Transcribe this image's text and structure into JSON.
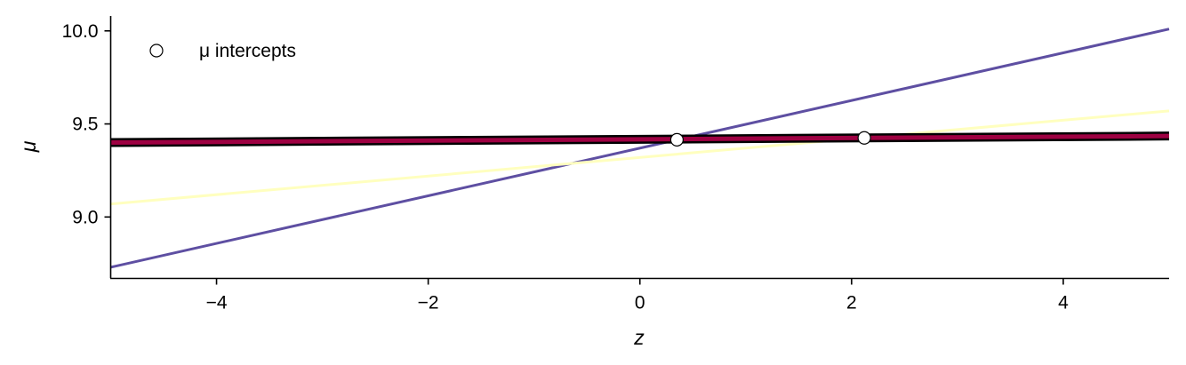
{
  "chart_data": {
    "type": "line",
    "xlabel": "z",
    "ylabel": "μ",
    "xlim": [
      -5,
      5
    ],
    "ylim": [
      8.67,
      10.08
    ],
    "xticks": [
      -4,
      -2,
      0,
      2,
      4
    ],
    "xtick_labels": [
      "−4",
      "−2",
      "0",
      "2",
      "4"
    ],
    "yticks": [
      9.0,
      9.5,
      10.0
    ],
    "ytick_labels": [
      "9.0",
      "9.5",
      "10.0"
    ],
    "grid": false,
    "legend_position": "top-left",
    "series": [
      {
        "color": "#5e4fa2",
        "x": [
          -5,
          5
        ],
        "y": [
          8.73,
          10.01
        ],
        "line_width": 3
      },
      {
        "color": "#ffffbf",
        "x": [
          -5,
          5
        ],
        "y": [
          9.07,
          9.57
        ],
        "line_width": 3
      },
      {
        "color": "#000000",
        "x": [
          -5,
          5
        ],
        "y": [
          9.4,
          9.435
        ],
        "line_width": 10
      },
      {
        "color": "#9e0142",
        "x": [
          -5,
          5
        ],
        "y": [
          9.4,
          9.435
        ],
        "line_width": 5
      }
    ],
    "intercepts": {
      "label": "μ intercepts",
      "points": [
        {
          "x": 0.35,
          "y": 9.415
        },
        {
          "x": 2.12,
          "y": 9.425
        }
      ]
    }
  }
}
